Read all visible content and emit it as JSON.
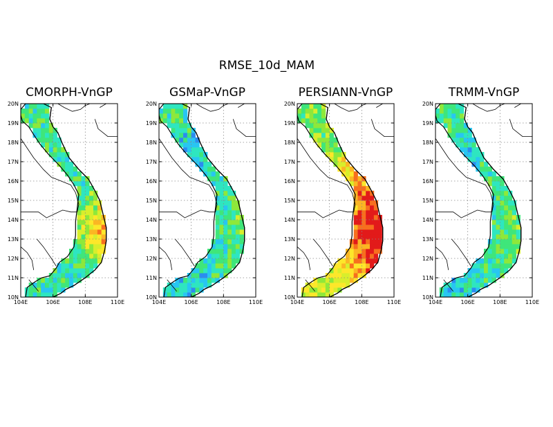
{
  "title": "RMSE_10d_MAM",
  "chart_data": [
    {
      "type": "heatmap",
      "title": "CMORPH-VnGP",
      "xlabels": [
        "104E",
        "106E",
        "108E",
        "110E"
      ],
      "ylabels": [
        "10N",
        "11N",
        "12N",
        "13N",
        "14N",
        "15N",
        "16N",
        "17N",
        "18N",
        "19N",
        "20N"
      ],
      "xlim": [
        104,
        110
      ],
      "ylim": [
        10,
        20
      ],
      "grid": true,
      "pattern": "mixed"
    },
    {
      "type": "heatmap",
      "title": "GSMaP-VnGP",
      "xlabels": [
        "104E",
        "106E",
        "108E",
        "110E"
      ],
      "ylabels": [
        "10N",
        "11N",
        "12N",
        "13N",
        "14N",
        "15N",
        "16N",
        "17N",
        "18N",
        "19N",
        "20N"
      ],
      "xlim": [
        104,
        110
      ],
      "ylim": [
        10,
        20
      ],
      "grid": true,
      "pattern": "cool"
    },
    {
      "type": "heatmap",
      "title": "PERSIANN-VnGP",
      "xlabels": [
        "104E",
        "106E",
        "108E",
        "110E"
      ],
      "ylabels": [
        "10N",
        "11N",
        "12N",
        "13N",
        "14N",
        "15N",
        "16N",
        "17N",
        "18N",
        "19N",
        "20N"
      ],
      "xlim": [
        104,
        110
      ],
      "ylim": [
        10,
        20
      ],
      "grid": true,
      "pattern": "hot"
    },
    {
      "type": "heatmap",
      "title": "TRMM-VnGP",
      "xlabels": [
        "104E",
        "106E",
        "108E",
        "110E"
      ],
      "ylabels": [
        "10N",
        "11N",
        "12N",
        "13N",
        "14N",
        "15N",
        "16N",
        "17N",
        "18N",
        "19N",
        "20N"
      ],
      "xlim": [
        104,
        110
      ],
      "ylim": [
        10,
        20
      ],
      "grid": true,
      "pattern": "cool2"
    }
  ],
  "colors": {
    "scale": [
      "#1c4fd8",
      "#2b8cf0",
      "#28c6f2",
      "#2ee6c0",
      "#3fe67a",
      "#8ee83a",
      "#d8ee2c",
      "#fde72a",
      "#fbb623",
      "#f76f1e",
      "#e21a1a"
    ]
  }
}
